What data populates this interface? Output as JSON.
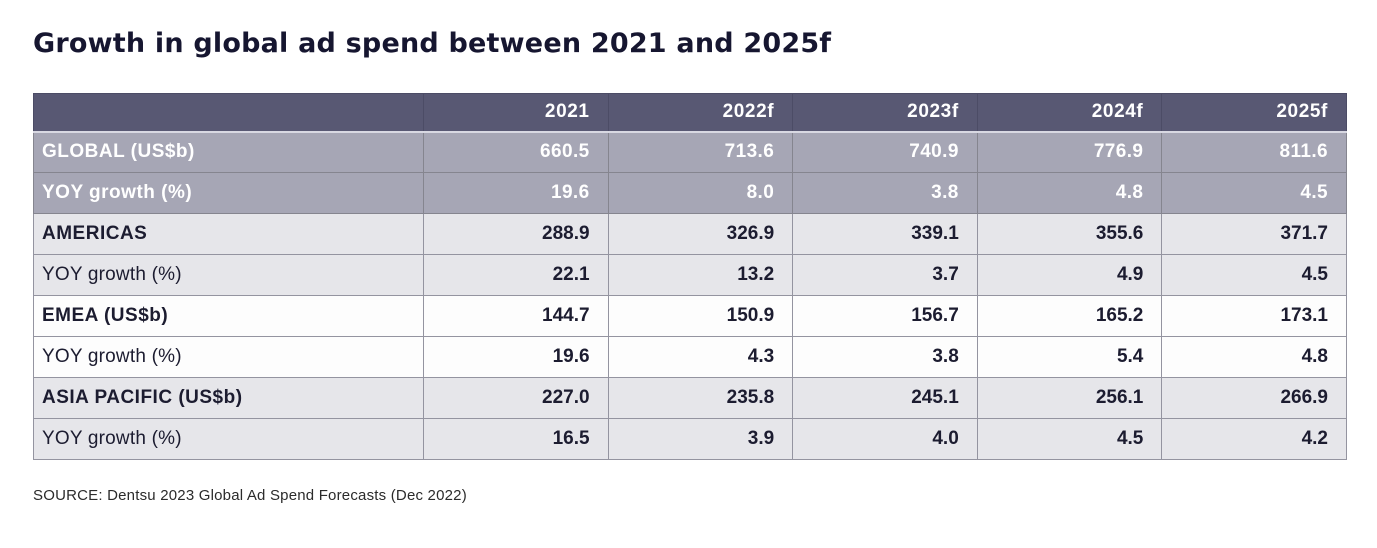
{
  "title": "Growth in global ad spend between 2021 and 2025f",
  "source": "SOURCE: Dentsu 2023 Global Ad Spend Forecasts (Dec 2022)",
  "colors": {
    "title_text": "#161630",
    "header_bg": "#585873",
    "header_text": "#ffffff",
    "global_row_bg": "#a6a6b5",
    "global_row_text": "#ffffff",
    "gray_row_bg": "#e6e6ea",
    "white_row_bg": "#fdfdfd",
    "body_text": "#1c1c30",
    "grid_border": "#9494a0"
  },
  "chart_data": {
    "type": "table",
    "title": "Growth in global ad spend between 2021 and 2025f",
    "columns": [
      "",
      "2021",
      "2022f",
      "2023f",
      "2024f",
      "2025f"
    ],
    "rows": [
      {
        "label": "GLOBAL (US$b)",
        "values": [
          "660.5",
          "713.6",
          "740.9",
          "776.9",
          "811.6"
        ]
      },
      {
        "label": "YOY growth (%)",
        "values": [
          "19.6",
          "8.0",
          "3.8",
          "4.8",
          "4.5"
        ]
      },
      {
        "label": "AMERICAS",
        "values": [
          "288.9",
          "326.9",
          "339.1",
          "355.6",
          "371.7"
        ]
      },
      {
        "label": "YOY growth (%)",
        "values": [
          "22.1",
          "13.2",
          "3.7",
          "4.9",
          "4.5"
        ]
      },
      {
        "label": "EMEA (US$b)",
        "values": [
          "144.7",
          "150.9",
          "156.7",
          "165.2",
          "173.1"
        ]
      },
      {
        "label": "YOY growth (%)",
        "values": [
          "19.6",
          "4.3",
          "3.8",
          "5.4",
          "4.8"
        ]
      },
      {
        "label": "ASIA PACIFIC (US$b)",
        "values": [
          "227.0",
          "235.8",
          "245.1",
          "256.1",
          "266.9"
        ]
      },
      {
        "label": "YOY growth (%)",
        "values": [
          "16.5",
          "3.9",
          "4.0",
          "4.5",
          "4.2"
        ]
      }
    ]
  }
}
